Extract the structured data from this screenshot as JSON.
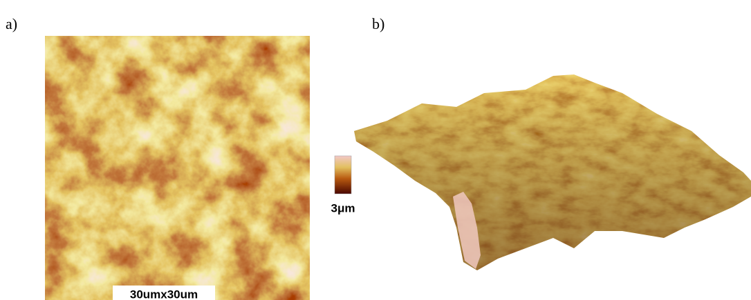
{
  "panels": [
    {
      "label": "a)",
      "scale_label": "30umx30um"
    },
    {
      "label": "b)",
      "colorbar_label": "3μm"
    }
  ]
}
